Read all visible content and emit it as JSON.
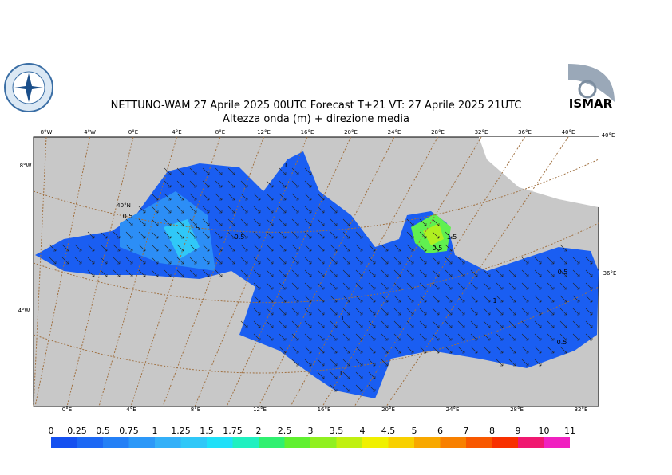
{
  "title": "NETTUNO-WAM  27   Aprile  2025 00UTC Forecast T+21 VT: 27   Aprile  2025 21UTC",
  "subtitle": "Altezza onda (m) + direzione media",
  "logo_right": "ISMAR",
  "top_lon_labels": [
    "8°W",
    "4°W",
    "0°E",
    "4°E",
    "8°E",
    "12°E",
    "16°E",
    "20°E",
    "24°E",
    "28°E",
    "32°E",
    "36°E",
    "40°E"
  ],
  "bottom_lon_labels": [
    "0°E",
    "4°E",
    "8°E",
    "12°E",
    "16°E",
    "20°E",
    "24°E",
    "28°E",
    "32°E"
  ],
  "left_labels": [
    "8°W",
    "40°N",
    "4°W"
  ],
  "right_labels": [
    "40°E",
    "36°E"
  ],
  "contour_labels": [
    "0.5",
    "1.5",
    "1",
    "1.5",
    "0.5",
    "1",
    "0.5",
    "1",
    "0.5",
    "1",
    "0.5"
  ],
  "colorbar": {
    "labels": [
      0,
      0.25,
      0.5,
      0.75,
      1,
      1.25,
      1.5,
      1.75,
      2,
      2.5,
      3,
      3.5,
      4,
      4.5,
      5,
      6,
      7,
      8,
      9,
      10,
      11
    ],
    "colors": [
      "#1450f0",
      "#1c68f4",
      "#2480f6",
      "#2c98f8",
      "#34b0f8",
      "#30c8f8",
      "#20e0f8",
      "#20f0c0",
      "#30f070",
      "#60f030",
      "#90f020",
      "#c0f010",
      "#f0f000",
      "#f8d000",
      "#f8a800",
      "#f88000",
      "#f85800",
      "#f83000",
      "#f01870",
      "#f020c0"
    ]
  }
}
